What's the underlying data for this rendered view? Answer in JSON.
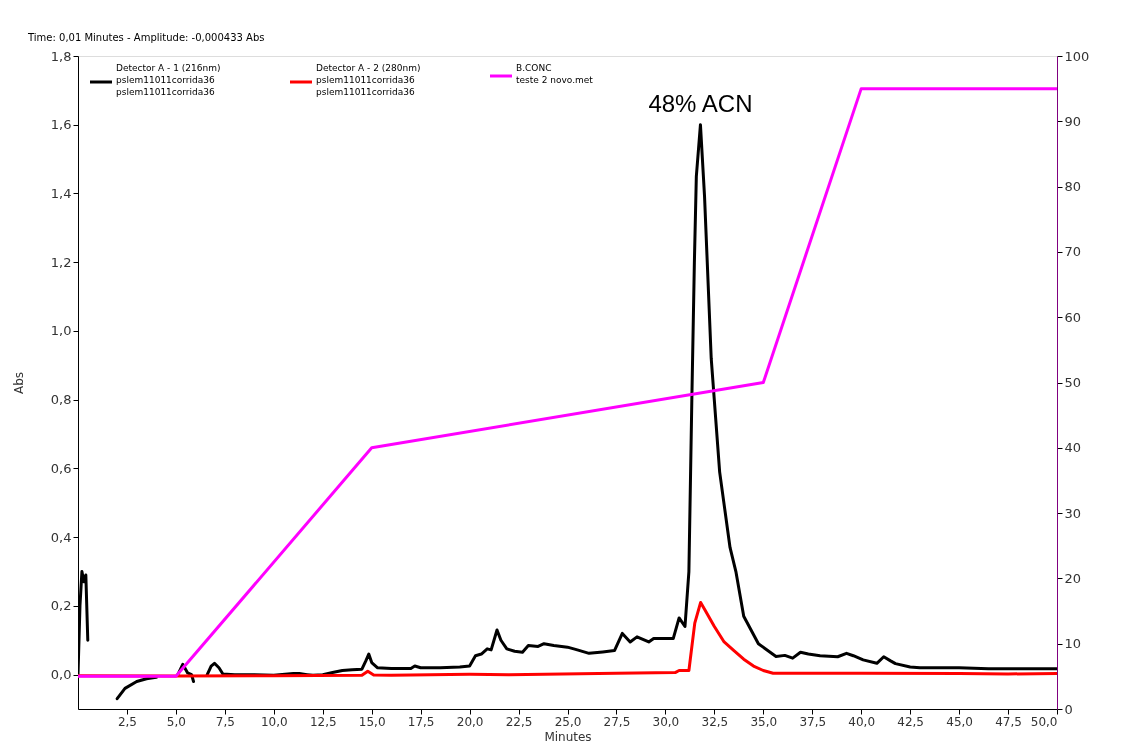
{
  "chart_data": {
    "type": "line",
    "xlabel": "Minutes",
    "ylabel": "Abs",
    "annotations": [
      "Time: 0,01 Minutes - Amplitude: -0,000433 Abs",
      {
        "text": "48% ACN",
        "x": 31.79,
        "y": 1.6
      }
    ],
    "xlim": [
      0,
      50
    ],
    "xticks": [
      {
        "value": 2.5,
        "label": "2,5"
      },
      {
        "value": 5,
        "label": "5,0"
      },
      {
        "value": 7.5,
        "label": "7,5"
      },
      {
        "value": 10,
        "label": "10,0"
      },
      {
        "value": 12.5,
        "label": "12,5"
      },
      {
        "value": 15,
        "label": "15,0"
      },
      {
        "value": 17.5,
        "label": "17,5"
      },
      {
        "value": 20,
        "label": "20,0"
      },
      {
        "value": 22.5,
        "label": "22,5"
      },
      {
        "value": 25,
        "label": "25,0"
      },
      {
        "value": 27.5,
        "label": "27,5"
      },
      {
        "value": 30,
        "label": "30,0"
      },
      {
        "value": 32.5,
        "label": "32,5"
      },
      {
        "value": 35,
        "label": "35,0"
      },
      {
        "value": 37.5,
        "label": "37,5"
      },
      {
        "value": 40,
        "label": "40,0"
      },
      {
        "value": 42.5,
        "label": "42,5"
      },
      {
        "value": 45,
        "label": "45,0"
      },
      {
        "value": 47.5,
        "label": "47,5"
      },
      {
        "value": 50,
        "label": "50,0"
      }
    ],
    "ylim": [
      -0.1,
      1.8
    ],
    "yticks": [
      {
        "value": 0,
        "label": "0,0"
      },
      {
        "value": 0.2,
        "label": "0,2"
      },
      {
        "value": 0.4,
        "label": "0,4"
      },
      {
        "value": 0.6,
        "label": "0,6"
      },
      {
        "value": 0.8,
        "label": "0,8"
      },
      {
        "value": 1.0,
        "label": "1,0"
      },
      {
        "value": 1.2,
        "label": "1,2"
      },
      {
        "value": 1.4,
        "label": "1,4"
      },
      {
        "value": 1.6,
        "label": "1,6"
      },
      {
        "value": 1.8,
        "label": "1,8"
      }
    ],
    "y2lim": [
      0,
      100
    ],
    "y2ticks": [
      0,
      10,
      20,
      30,
      40,
      50,
      60,
      70,
      80,
      90,
      100
    ],
    "grid": false,
    "legend": "top left",
    "marker": "none",
    "line_style": "solid",
    "series": [
      {
        "name": "Detector A - 1 (216nm)\npslem11011corrida36\npslem11011corrida36",
        "color": "#000000",
        "x": [
          0.0,
          0.1,
          0.2,
          0.3,
          0.4,
          0.5,
          0.67,
          1.2,
          1.77,
          2.0,
          2.4,
          3.0,
          3.5,
          4.0,
          4.8,
          5.1,
          5.35,
          5.6,
          5.8,
          5.9,
          5.95,
          6.2,
          6.4,
          6.6,
          6.8,
          6.97,
          7.2,
          7.4,
          8.0,
          9.0,
          10.0,
          11.0,
          11.3,
          11.7,
          12.0,
          12.5,
          13.0,
          13.5,
          14.0,
          14.5,
          14.7,
          14.85,
          15.0,
          15.3,
          16.0,
          17.0,
          17.2,
          17.5,
          18.5,
          19.5,
          20.0,
          20.3,
          20.6,
          20.9,
          21.1,
          21.4,
          21.6,
          21.9,
          22.3,
          22.7,
          23.0,
          23.5,
          23.8,
          24.3,
          25.0,
          25.5,
          26.1,
          26.8,
          27.4,
          27.8,
          28.2,
          28.55,
          29.15,
          29.4,
          30.4,
          30.7,
          31.0,
          31.2,
          31.35,
          31.48,
          31.58,
          31.79,
          32.0,
          32.34,
          32.77,
          33.3,
          33.6,
          34.0,
          34.75,
          35.65,
          36.1,
          36.5,
          36.9,
          37.3,
          37.9,
          38.8,
          39.25,
          39.6,
          40.1,
          40.8,
          41.15,
          41.5,
          41.75,
          42.5,
          43.0,
          45.0,
          46.5,
          50.0
        ],
        "values": [
          0.0,
          0.2,
          0.3,
          0.27,
          0.29,
          0.1,
          null,
          null,
          null,
          -0.07,
          -0.04,
          -0.02,
          -0.012,
          -0.008,
          null,
          0.0,
          0.03,
          0.005,
          0.0,
          -0.02,
          null,
          null,
          null,
          0.0,
          0.025,
          0.033,
          0.02,
          0.002,
          0.0,
          0.0,
          -0.002,
          0.003,
          0.003,
          0.0,
          -0.002,
          0.0,
          0.006,
          0.012,
          0.014,
          0.016,
          0.04,
          0.06,
          0.035,
          0.02,
          0.018,
          0.018,
          0.025,
          0.02,
          0.02,
          0.022,
          0.025,
          0.055,
          0.06,
          0.075,
          0.072,
          0.13,
          0.1,
          0.075,
          0.068,
          0.065,
          0.085,
          0.082,
          0.09,
          0.085,
          0.08,
          0.072,
          0.062,
          0.066,
          0.07,
          0.12,
          0.095,
          0.11,
          0.095,
          0.105,
          0.105,
          0.165,
          0.14,
          0.3,
          0.8,
          1.2,
          1.45,
          1.6,
          1.39,
          0.92,
          0.59,
          0.37,
          0.3,
          0.17,
          0.09,
          0.053,
          0.056,
          0.048,
          0.065,
          0.06,
          0.055,
          0.052,
          0.062,
          0.055,
          0.043,
          0.033,
          0.052,
          0.04,
          0.032,
          0.022,
          0.02,
          0.02,
          0.017,
          0.017
        ]
      },
      {
        "name": "Detector A - 2 (280nm)\npslem11011corrida36\npslem11011corrida36",
        "color": "#ff0000",
        "x": [
          0,
          5,
          10,
          14.5,
          14.8,
          15.1,
          16,
          20,
          22,
          27.5,
          30.5,
          30.7,
          31.2,
          31.5,
          31.8,
          32.0,
          32.5,
          33.0,
          33.5,
          34.0,
          34.5,
          35.0,
          35.5,
          37,
          40,
          45,
          47.5,
          50
        ],
        "values": [
          -0.003,
          -0.004,
          -0.003,
          -0.002,
          0.01,
          -0.001,
          -0.002,
          0.001,
          0.0,
          0.004,
          0.006,
          0.012,
          0.012,
          0.15,
          0.21,
          0.19,
          0.14,
          0.095,
          0.07,
          0.045,
          0.025,
          0.012,
          0.004,
          0.004,
          0.004,
          0.003,
          0.002,
          0.003
        ]
      },
      {
        "name": "B.CONC\nteste 2 novo.met",
        "color": "#ff00ff",
        "axis": "y2",
        "x": [
          0,
          5,
          15,
          35,
          40,
          50
        ],
        "values": [
          5,
          5,
          40,
          50,
          95,
          95
        ]
      }
    ]
  }
}
